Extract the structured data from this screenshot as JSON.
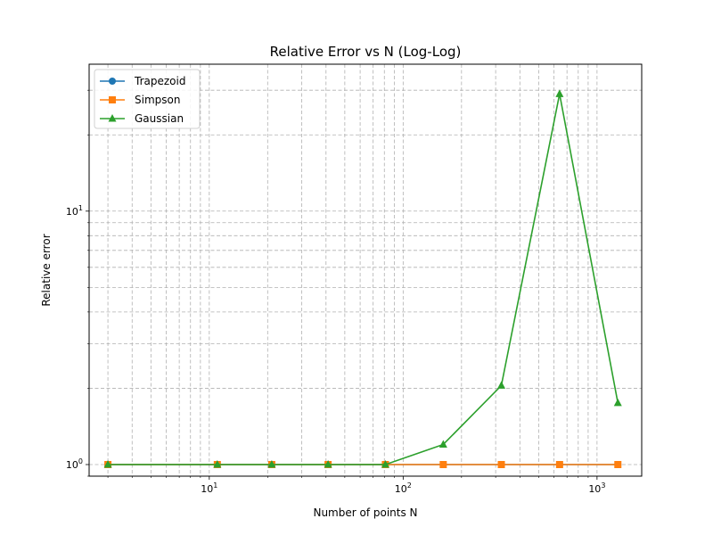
{
  "chart_data": {
    "type": "line",
    "title": "Relative Error vs N (Log-Log)",
    "xlabel": "Number of points N",
    "ylabel": "Relative error",
    "xscale": "log",
    "yscale": "log",
    "xlim": [
      2.4,
      1700
    ],
    "ylim": [
      0.9,
      38
    ],
    "x_ticks": [
      {
        "value": 10,
        "label": "10",
        "exp": "1"
      },
      {
        "value": 100,
        "label": "10",
        "exp": "2"
      },
      {
        "value": 1000,
        "label": "10",
        "exp": "3"
      }
    ],
    "y_ticks": [
      {
        "value": 1,
        "label": "10",
        "exp": "0"
      },
      {
        "value": 10,
        "label": "10",
        "exp": "1"
      }
    ],
    "grid": true,
    "legend_position": "top-left",
    "x": [
      3,
      11,
      21,
      41,
      81,
      161,
      321,
      641,
      1281
    ],
    "series": [
      {
        "name": "Trapezoid",
        "color": "#1f77b4",
        "marker": "circle",
        "values": [
          1,
          1,
          1,
          1,
          1,
          1,
          1,
          1,
          1
        ]
      },
      {
        "name": "Simpson",
        "color": "#ff7f0e",
        "marker": "square",
        "values": [
          1,
          1,
          1,
          1,
          1,
          1,
          1,
          1,
          1
        ]
      },
      {
        "name": "Gaussian",
        "color": "#2ca02c",
        "marker": "triangle",
        "values": [
          1,
          1,
          1,
          1,
          1,
          1.2,
          2.05,
          29,
          1.75
        ]
      }
    ]
  }
}
